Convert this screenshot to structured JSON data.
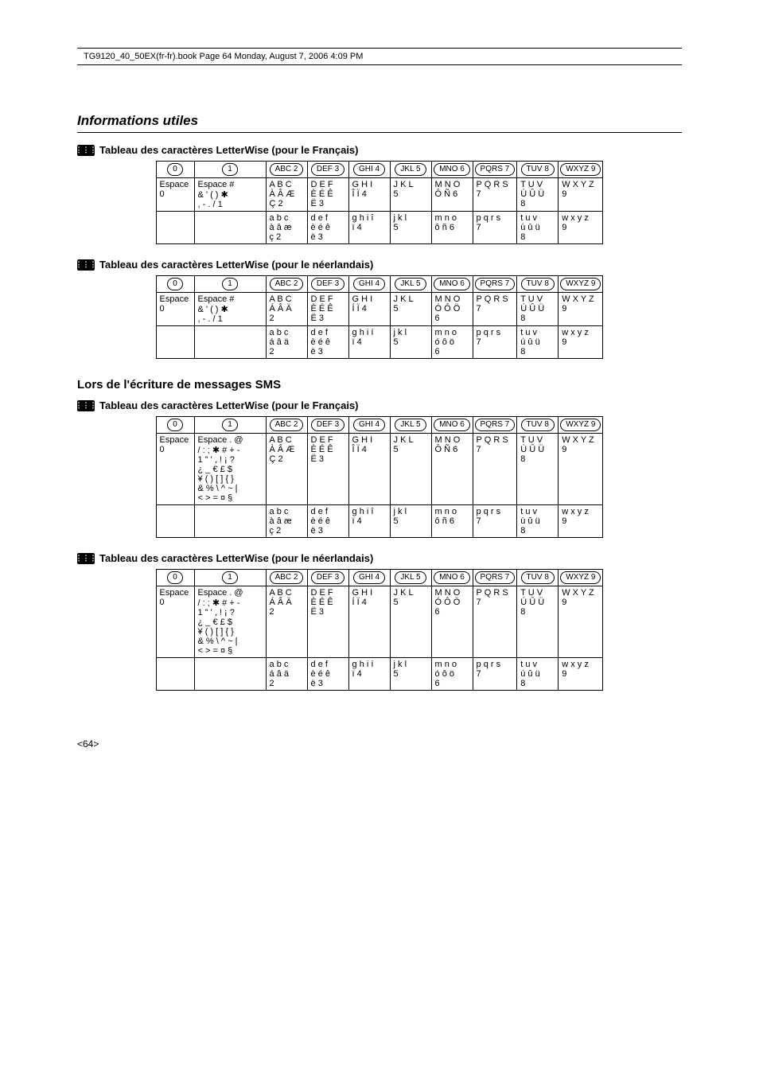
{
  "print_header": "TG9120_40_50EX(fr-fr).book  Page 64  Monday, August 7, 2006  4:09 PM",
  "section_title": "Informations utiles",
  "sms_heading": "Lors de l'écriture de messages SMS",
  "page_num": "<64>",
  "icon_label": "⋮⋮⋮",
  "key_labels": [
    "0",
    "1",
    "ABC 2",
    "DEF 3",
    "GHI 4",
    "JKL 5",
    "MNO 6",
    "PQRS 7",
    "TUV 8",
    "WXYZ 9"
  ],
  "tables": [
    {
      "title": "Tableau des caractères LetterWise (pour le Français)",
      "rows_upper": [
        "Espace\n0",
        "Espace #\n& ' ( ) ✱\n, - . / 1",
        "A B C\nÀ Â Æ\nÇ 2",
        "D E F\nÈ É Ê\nË 3",
        "G H I\nÎ Ï 4",
        "J K L\n5",
        "M N O\nÔ Ñ 6",
        "P Q R S\n7",
        "T U V\nÙ Û Ü\n8",
        "W X Y Z\n9"
      ],
      "rows_lower": [
        "",
        "",
        "a b c\nà â æ\nç 2",
        "d e f\nè é ê\në 3",
        "g h i î\nï 4",
        "j k l\n5",
        "m n o\nô ñ 6",
        "p q r s\n7",
        "t u v\nù û ü\n8",
        "w x y z\n9"
      ]
    },
    {
      "title": "Tableau des caractères LetterWise (pour le néerlandais)",
      "rows_upper": [
        "Espace\n0",
        "Espace #\n& ' ( ) ✱\n, - . / 1",
        "A B C\nÁ Â Ä\n2",
        "D E F\nÈ É Ê\nË 3",
        "G H I\nÍ Ï 4",
        "J K L\n5",
        "M N O\nÓ Ô Ö\n6",
        "P Q R S\n7",
        "T U V\nÚ Û Ü\n8",
        "W X Y Z\n9"
      ],
      "rows_lower": [
        "",
        "",
        "a b c\ná â ä\n2",
        "d e f\nè é ê\në 3",
        "g h i í\nï 4",
        "j k l\n5",
        "m n o\nó ô ö\n6",
        "p q r s\n7",
        "t u v\nú û ü\n8",
        "w x y z\n9"
      ]
    },
    {
      "title": "Tableau des caractères LetterWise (pour le Français)",
      "rows_upper": [
        "Espace\n0",
        "Espace . @\n/ : ; ✱ # + -\n1 \" ' , ! ¡ ?\n¿ _ € £ $\n¥ ( ) [ ] { }\n& % \\ ^ ~ |\n< > = ¤ §",
        "A B C\nÀ Â Æ\nÇ 2",
        "D E F\nÈ É Ê\nË 3",
        "G H I\nÎ Ï 4",
        "J K L\n5",
        "M N O\nÔ Ñ 6",
        "P Q R S\n7",
        "T U V\nÙ Û Ü\n8",
        "W X Y Z\n9"
      ],
      "rows_lower": [
        "",
        "",
        "a b c\nà â æ\nç 2",
        "d e f\nè é ê\në 3",
        "g h i î\nï 4",
        "j k l\n5",
        "m n o\nô ñ 6",
        "p q r s\n7",
        "t u v\nù û ü\n8",
        "w x y z\n9"
      ]
    },
    {
      "title": "Tableau des caractères LetterWise (pour le néerlandais)",
      "rows_upper": [
        "Espace\n0",
        "Espace . @\n/ : ; ✱ # + -\n1 \" ' , ! ¡ ?\n¿ _ € £ $\n¥ ( ) [ ] { }\n& % \\ ^ ~ |\n< > = ¤ §",
        "A B C\nÁ Â Ä\n2",
        "D E F\nÈ É Ê\nË 3",
        "G H I\nÍ Ï 4",
        "J K L\n5",
        "M N O\nÓ Ô Ö\n6",
        "P Q R S\n7",
        "T U V\nÚ Û Ü\n8",
        "W X Y Z\n9"
      ],
      "rows_lower": [
        "",
        "",
        "a b c\ná â ä\n2",
        "d e f\nè é ê\në 3",
        "g h i í\nï 4",
        "j k l\n5",
        "m n o\nó ô ö\n6",
        "p q r s\n7",
        "t u v\nú û ü\n8",
        "w x y z\n9"
      ]
    }
  ]
}
